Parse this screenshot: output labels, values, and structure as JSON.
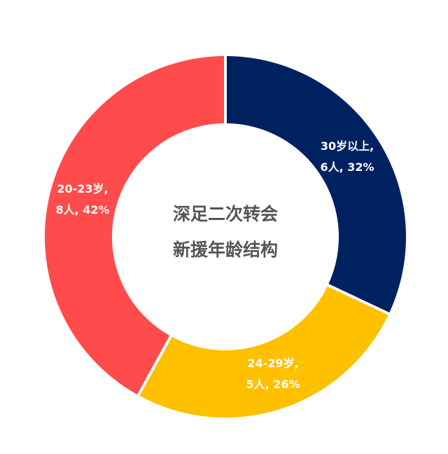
{
  "chart_data": {
    "type": "pie",
    "variant": "donut",
    "center_title": [
      "深足二次转会",
      "新援年龄结构"
    ],
    "slices": [
      {
        "label_lines": [
          "30岁以上,",
          "6人, 32%"
        ],
        "category": "30岁以上",
        "count": 6,
        "percent": 32,
        "color": "#002160"
      },
      {
        "label_lines": [
          "24-29岁,",
          "5人, 26%"
        ],
        "category": "24-29岁",
        "count": 5,
        "percent": 26,
        "color": "#FFC000"
      },
      {
        "label_lines": [
          "20-23岁,",
          "8人, 42%"
        ],
        "category": "20-23岁",
        "count": 8,
        "percent": 42,
        "color": "#FF4B4B"
      }
    ],
    "legend": "none"
  }
}
